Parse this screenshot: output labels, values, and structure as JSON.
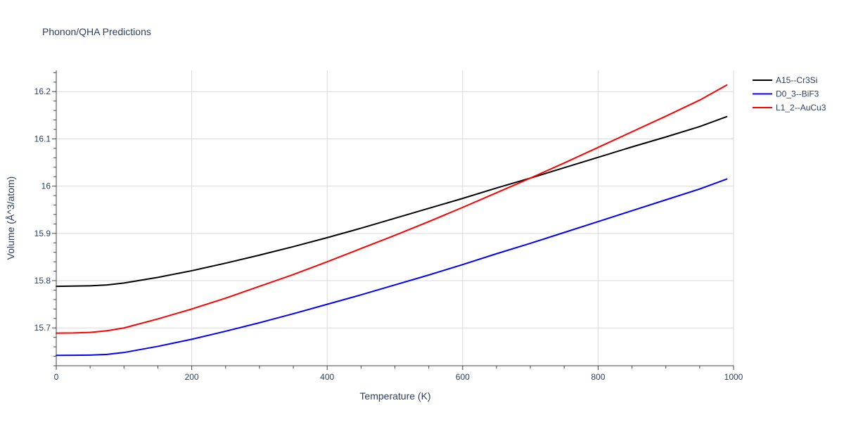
{
  "chart_data": {
    "type": "line",
    "title": "Phonon/QHA Predictions",
    "xlabel": "Temperature (K)",
    "ylabel": "Volume (Å^3/atom)",
    "xlim": [
      0,
      1000
    ],
    "ylim": [
      15.62,
      16.245
    ],
    "x_ticks": [
      0,
      200,
      400,
      600,
      800,
      1000
    ],
    "x_tick_labels": [
      "0",
      "200",
      "400",
      "600",
      "800",
      "1000"
    ],
    "y_ticks": [
      15.7,
      15.8,
      15.9,
      16.0,
      16.1,
      16.2
    ],
    "y_tick_labels": [
      "15.7",
      "15.8",
      "15.9",
      "16",
      "16.1",
      "16.2"
    ],
    "grid": true,
    "legend_position": "top-right",
    "series": [
      {
        "name": "A15--Cr3Si",
        "color": "#000000",
        "x": [
          0,
          25,
          50,
          75,
          100,
          150,
          200,
          250,
          300,
          350,
          400,
          450,
          500,
          550,
          600,
          650,
          700,
          750,
          800,
          850,
          900,
          950,
          990
        ],
        "y": [
          15.788,
          15.7885,
          15.789,
          15.791,
          15.795,
          15.807,
          15.821,
          15.837,
          15.854,
          15.872,
          15.891,
          15.911,
          15.932,
          15.953,
          15.974,
          15.996,
          16.017,
          16.039,
          16.061,
          16.083,
          16.104,
          16.126,
          16.147
        ]
      },
      {
        "name": "D0_3--BiF3",
        "color": "#0000ff",
        "x": [
          0,
          25,
          50,
          75,
          100,
          150,
          200,
          250,
          300,
          350,
          400,
          450,
          500,
          550,
          600,
          650,
          700,
          750,
          800,
          850,
          900,
          950,
          990
        ],
        "y": [
          15.642,
          15.6422,
          15.6425,
          15.644,
          15.648,
          15.661,
          15.676,
          15.693,
          15.711,
          15.73,
          15.75,
          15.77,
          15.791,
          15.812,
          15.834,
          15.857,
          15.879,
          15.902,
          15.925,
          15.948,
          15.971,
          15.994,
          16.015
        ]
      },
      {
        "name": "L1_2--AuCu3",
        "color": "#ff0000",
        "x": [
          0,
          25,
          50,
          75,
          100,
          150,
          200,
          250,
          300,
          350,
          400,
          450,
          500,
          550,
          600,
          650,
          700,
          750,
          800,
          850,
          900,
          950,
          990
        ],
        "y": [
          15.689,
          15.6893,
          15.6905,
          15.694,
          15.7,
          15.719,
          15.74,
          15.763,
          15.788,
          15.813,
          15.84,
          15.868,
          15.896,
          15.925,
          15.955,
          15.986,
          16.017,
          16.049,
          16.082,
          16.115,
          16.148,
          16.182,
          16.214
        ]
      }
    ]
  }
}
